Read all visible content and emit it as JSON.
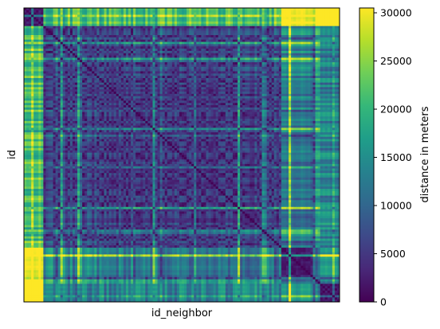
{
  "chart_data": {
    "type": "heatmap",
    "title": "",
    "xlabel": "id_neighbor",
    "ylabel": "id",
    "x_ticks": [],
    "y_ticks": [],
    "grid": false,
    "n_rows": 130,
    "n_cols": 130,
    "value_unit": "meters",
    "colorbar": {
      "label": "distance in meters",
      "colormap": "viridis",
      "range": [
        0,
        30500
      ],
      "ticks": [
        0,
        5000,
        10000,
        15000,
        20000,
        25000,
        30000
      ],
      "tick_labels": [
        "0",
        "5000",
        "10000",
        "15000",
        "20000",
        "25000",
        "30000"
      ]
    },
    "colormap_stops": [
      "#440154",
      "#482878",
      "#3e4989",
      "#31688e",
      "#26828e",
      "#1f9e89",
      "#35b779",
      "#6ece58",
      "#b5de2b",
      "#fde725"
    ],
    "description_values": {
      "diagonal": 0,
      "typical_center_block": [
        4000,
        9000
      ],
      "typical_edge_rows": [
        15000,
        24000
      ],
      "maximum": 30500
    }
  }
}
